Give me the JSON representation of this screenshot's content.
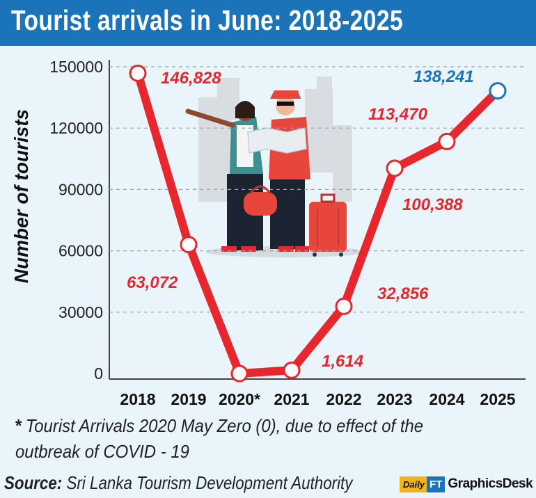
{
  "title": "Tourist arrivals in June: 2018-2025",
  "chart_data": {
    "type": "line",
    "title": "Tourist arrivals in June: 2018-2025",
    "xlabel": "",
    "ylabel": "Number of tourists",
    "categories": [
      "2018",
      "2019",
      "2020*",
      "2021",
      "2022",
      "2023",
      "2024",
      "2025"
    ],
    "values": [
      146828,
      63072,
      0,
      1614,
      32856,
      100388,
      113470,
      138241
    ],
    "data_labels": [
      "146,828",
      "63,072",
      "",
      "1,614",
      "32,856",
      "100,388",
      "113,470",
      "138,241"
    ],
    "ylim": [
      0,
      150000
    ],
    "yticks": [
      "0",
      "30000",
      "60000",
      "90000",
      "120000",
      "150000"
    ],
    "grid": "horizontal dashed",
    "line_color": "#e8262d",
    "highlight_color": "#1b73ba"
  },
  "footnote": {
    "marker": "*",
    "text": "Tourist Arrivals 2020 May Zero (0), due to effect of the outbreak of COVID - 19"
  },
  "source": {
    "label": "Source:",
    "text": "Sri Lanka Tourism Development Authority"
  },
  "brand": {
    "daily": "Daily",
    "ft": "FT",
    "desk": "GraphicsDesk"
  },
  "illustration": "two-tourists-with-map-and-luggage"
}
